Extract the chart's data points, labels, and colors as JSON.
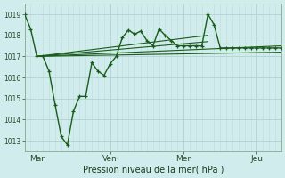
{
  "background_color": "#d0ecec",
  "grid_color": "#b8d4d4",
  "line_color": "#1a5c1a",
  "title": "Pression niveau de la mer( hPa )",
  "ylim": [
    1012.5,
    1019.5
  ],
  "yticks": [
    1013,
    1014,
    1015,
    1016,
    1017,
    1018,
    1019
  ],
  "figsize": [
    3.2,
    2.0
  ],
  "dpi": 100,
  "series_main": {
    "x": [
      0,
      1,
      2,
      3,
      4,
      5,
      6,
      7,
      8,
      9,
      10,
      11,
      12,
      13,
      14,
      15,
      16,
      17,
      18,
      19,
      20,
      21,
      22,
      23,
      24,
      25,
      26,
      27,
      28,
      29,
      30,
      31,
      32,
      33,
      34,
      35,
      36,
      37,
      38,
      39,
      40,
      41,
      42
    ],
    "y": [
      1019.0,
      1018.3,
      1017.0,
      1017.0,
      1016.3,
      1014.7,
      1013.2,
      1012.8,
      1014.4,
      1015.1,
      1015.1,
      1016.7,
      1016.3,
      1016.1,
      1016.65,
      1017.0,
      1017.9,
      1018.25,
      1018.05,
      1018.2,
      1017.75,
      1017.5,
      1018.3,
      1018.0,
      1017.75,
      1017.5,
      1017.5,
      1017.5,
      1017.5,
      1017.5,
      1019.0,
      1018.5,
      1017.4,
      1017.4,
      1017.4,
      1017.4,
      1017.4,
      1017.4,
      1017.4,
      1017.4,
      1017.4,
      1017.4,
      1017.4
    ]
  },
  "series_flat": {
    "x": [
      2,
      42
    ],
    "y": [
      1017.0,
      1017.2
    ]
  },
  "series_trend1": {
    "x": [
      2,
      30
    ],
    "y": [
      1017.0,
      1018.0
    ]
  },
  "series_trend2": {
    "x": [
      2,
      30
    ],
    "y": [
      1017.0,
      1017.7
    ]
  },
  "series_trend3": {
    "x": [
      2,
      42
    ],
    "y": [
      1017.0,
      1017.5
    ]
  },
  "vline_positions": [
    2,
    14,
    26,
    38
  ],
  "xtick_positions": [
    2,
    14,
    26,
    38
  ],
  "xtick_labels": [
    "Mar",
    "Ven",
    "Mer",
    "Jeu"
  ]
}
